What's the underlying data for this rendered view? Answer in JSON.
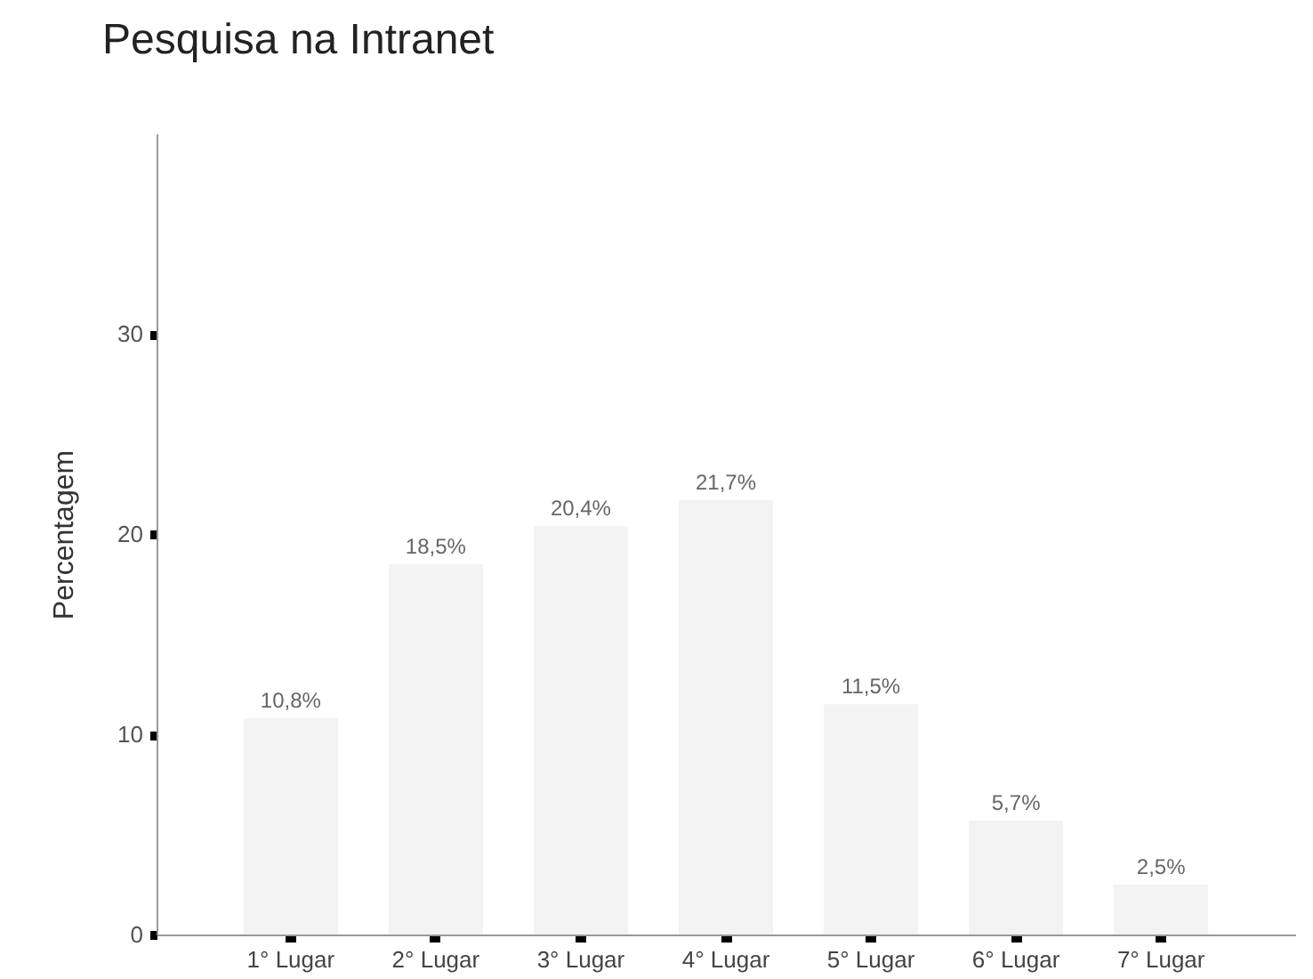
{
  "chart_data": {
    "type": "bar",
    "title": "Pesquisa na Intranet",
    "ylabel": "Percentagem",
    "categories": [
      "1° Lugar",
      "2° Lugar",
      "3° Lugar",
      "4° Lugar",
      "5° Lugar",
      "6° Lugar",
      "7° Lugar"
    ],
    "values": [
      10.8,
      18.5,
      20.4,
      21.7,
      11.5,
      5.7,
      2.5
    ],
    "value_labels": [
      "10,8%",
      "18,5%",
      "20,4%",
      "21,7%",
      "11,5%",
      "5,7%",
      "2,5%"
    ],
    "color": "#f3f3f3",
    "ylim": [
      0,
      40
    ],
    "yticks": [
      0,
      10,
      20,
      30
    ],
    "grid": false
  }
}
